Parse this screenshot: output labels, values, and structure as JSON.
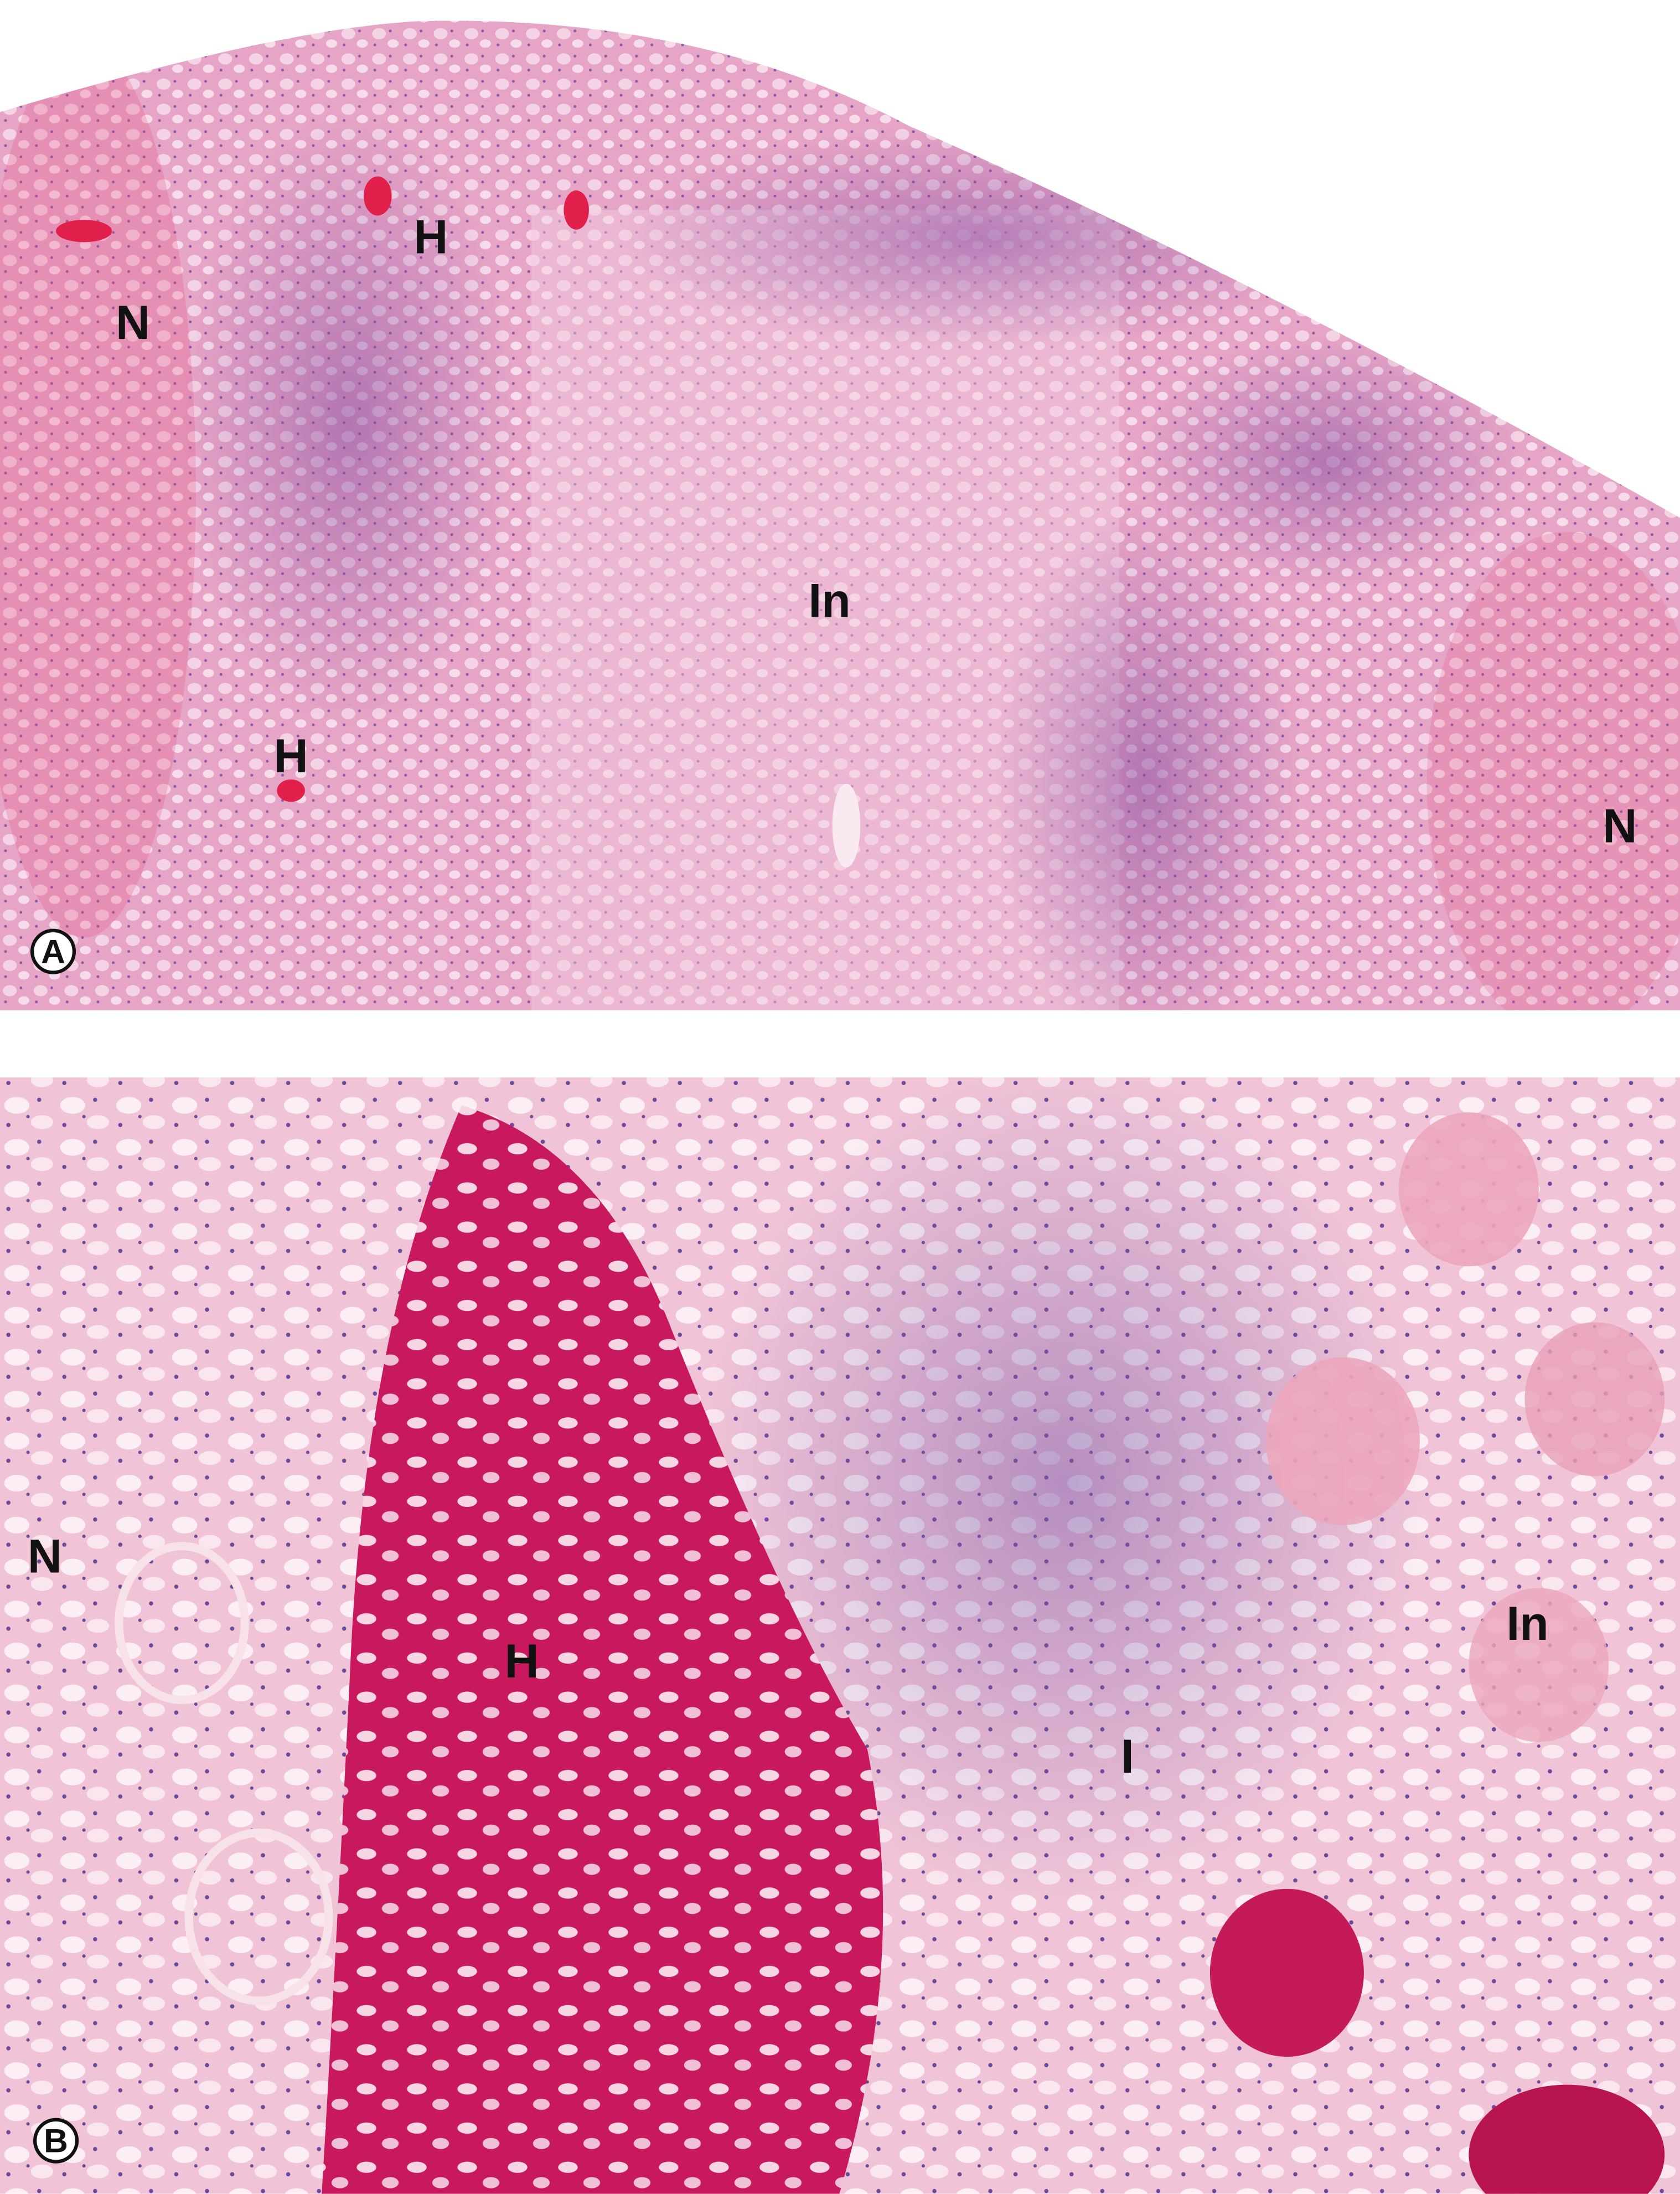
{
  "panels": [
    {
      "badge": "A",
      "labels": [
        "H",
        "N",
        "In",
        "H",
        "N"
      ]
    },
    {
      "badge": "B",
      "labels": [
        "N",
        "H",
        "In",
        "I"
      ]
    }
  ]
}
